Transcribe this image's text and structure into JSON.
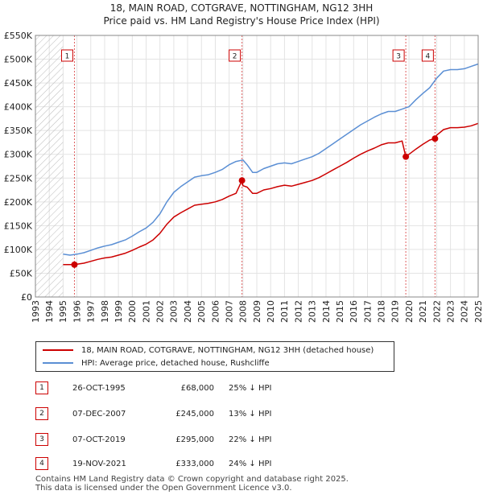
{
  "chart_data": {
    "type": "line",
    "title": "18, MAIN ROAD, COTGRAVE, NOTTINGHAM, NG12 3HH",
    "subtitle": "Price paid vs. HM Land Registry's House Price Index (HPI)",
    "xlim": [
      1993,
      2025
    ],
    "ylim": [
      0,
      550000
    ],
    "x_ticks": [
      1993,
      1994,
      1995,
      1996,
      1997,
      1998,
      1999,
      2000,
      2001,
      2002,
      2003,
      2004,
      2005,
      2006,
      2007,
      2008,
      2009,
      2010,
      2011,
      2012,
      2013,
      2014,
      2015,
      2016,
      2017,
      2018,
      2019,
      2020,
      2021,
      2022,
      2023,
      2024,
      2025
    ],
    "y_ticks": [
      0,
      50000,
      100000,
      150000,
      200000,
      250000,
      300000,
      350000,
      400000,
      450000,
      500000,
      550000
    ],
    "y_tick_labels": [
      "£0",
      "£50K",
      "£100K",
      "£150K",
      "£200K",
      "£250K",
      "£300K",
      "£350K",
      "£400K",
      "£450K",
      "£500K",
      "£550K"
    ],
    "hatched_before": 1995,
    "series": [
      {
        "name": "HPI: Average price, detached house, Rushcliffe",
        "color": "#5b8fd4",
        "x": [
          1995.0,
          1995.5,
          1996.0,
          1996.5,
          1997.0,
          1997.5,
          1998.0,
          1998.5,
          1999.0,
          1999.5,
          2000.0,
          2000.5,
          2001.0,
          2001.5,
          2002.0,
          2002.5,
          2003.0,
          2003.5,
          2004.0,
          2004.5,
          2005.0,
          2005.5,
          2006.0,
          2006.5,
          2007.0,
          2007.5,
          2008.0,
          2008.3,
          2008.7,
          2009.0,
          2009.5,
          2010.0,
          2010.5,
          2011.0,
          2011.5,
          2012.0,
          2012.5,
          2013.0,
          2013.5,
          2014.0,
          2014.5,
          2015.0,
          2015.5,
          2016.0,
          2016.5,
          2017.0,
          2017.5,
          2018.0,
          2018.5,
          2019.0,
          2019.5,
          2020.0,
          2020.5,
          2021.0,
          2021.5,
          2022.0,
          2022.5,
          2023.0,
          2023.5,
          2024.0,
          2024.5,
          2025.0
        ],
        "values": [
          90000,
          88000,
          90000,
          93000,
          98000,
          103000,
          107000,
          110000,
          115000,
          120000,
          128000,
          137000,
          145000,
          157000,
          175000,
          200000,
          220000,
          232000,
          242000,
          252000,
          255000,
          257000,
          262000,
          268000,
          278000,
          285000,
          288000,
          278000,
          262000,
          262000,
          270000,
          275000,
          280000,
          282000,
          280000,
          285000,
          290000,
          295000,
          302000,
          312000,
          322000,
          332000,
          342000,
          352000,
          362000,
          370000,
          378000,
          385000,
          390000,
          390000,
          395000,
          400000,
          415000,
          428000,
          440000,
          460000,
          475000,
          478000,
          478000,
          480000,
          485000,
          490000
        ]
      },
      {
        "name": "18, MAIN ROAD, COTGRAVE, NOTTINGHAM, NG12 3HH (detached house)",
        "color": "#cc0000",
        "x": [
          1995.0,
          1995.82,
          1996.0,
          1996.5,
          1997.0,
          1997.5,
          1998.0,
          1998.5,
          1999.0,
          1999.5,
          2000.0,
          2000.5,
          2001.0,
          2001.5,
          2002.0,
          2002.5,
          2003.0,
          2003.5,
          2004.0,
          2004.5,
          2005.0,
          2005.5,
          2006.0,
          2006.5,
          2007.0,
          2007.5,
          2007.93,
          2008.0,
          2008.3,
          2008.7,
          2009.0,
          2009.5,
          2010.0,
          2010.5,
          2011.0,
          2011.5,
          2012.0,
          2012.5,
          2013.0,
          2013.5,
          2014.0,
          2014.5,
          2015.0,
          2015.5,
          2016.0,
          2016.5,
          2017.0,
          2017.5,
          2018.0,
          2018.5,
          2019.0,
          2019.5,
          2019.77,
          2020.0,
          2020.5,
          2021.0,
          2021.5,
          2021.88,
          2022.0,
          2022.5,
          2023.0,
          2023.5,
          2024.0,
          2024.5,
          2025.0
        ],
        "values": [
          68000,
          68000,
          69000,
          71000,
          75000,
          79000,
          82000,
          84000,
          88000,
          92000,
          98000,
          105000,
          111000,
          120000,
          134000,
          153000,
          168000,
          177000,
          185000,
          193000,
          195000,
          197000,
          200000,
          205000,
          212000,
          218000,
          245000,
          234000,
          231000,
          218000,
          218000,
          225000,
          228000,
          232000,
          235000,
          233000,
          237000,
          241000,
          245000,
          251000,
          259000,
          267000,
          275000,
          283000,
          292000,
          300000,
          307000,
          313000,
          320000,
          324000,
          324000,
          328000,
          295000,
          300000,
          311000,
          321000,
          330000,
          333000,
          340000,
          352000,
          356000,
          356000,
          357000,
          360000,
          365000
        ]
      }
    ],
    "sales": [
      {
        "id": "1",
        "x": 1995.82,
        "value": 68000
      },
      {
        "id": "2",
        "x": 2007.93,
        "value": 245000
      },
      {
        "id": "3",
        "x": 2019.77,
        "value": 295000
      },
      {
        "id": "4",
        "x": 2021.88,
        "value": 333000
      }
    ]
  },
  "legend": {
    "property_label": "18, MAIN ROAD, COTGRAVE, NOTTINGHAM, NG12 3HH (detached house)",
    "hpi_label": "HPI: Average price, detached house, Rushcliffe",
    "property_color": "#cc0000",
    "hpi_color": "#5b8fd4"
  },
  "sales_table": [
    {
      "id": "1",
      "date": "26-OCT-1995",
      "price": "£68,000",
      "hpi": "25% ↓ HPI"
    },
    {
      "id": "2",
      "date": "07-DEC-2007",
      "price": "£245,000",
      "hpi": "13% ↓ HPI"
    },
    {
      "id": "3",
      "date": "07-OCT-2019",
      "price": "£295,000",
      "hpi": "22% ↓ HPI"
    },
    {
      "id": "4",
      "date": "19-NOV-2021",
      "price": "£333,000",
      "hpi": "24% ↓ HPI"
    }
  ],
  "footer": {
    "line1": "Contains HM Land Registry data © Crown copyright and database right 2025.",
    "line2": "This data is licensed under the Open Government Licence v3.0."
  }
}
